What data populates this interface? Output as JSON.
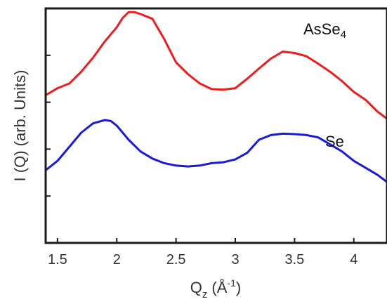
{
  "chart_data": {
    "type": "line",
    "xlabel_main": "Q",
    "xlabel_sub": "z",
    "xlabel_unit": "(Å",
    "xlabel_unit_sup": "-1",
    "xlabel_close": ")",
    "ylabel": "I (Q) (arb. Units)",
    "xlim": [
      1.4,
      4.28
    ],
    "ylim": [
      0,
      5
    ],
    "x_ticks": [
      "1.5",
      "2",
      "2.5",
      "3",
      "3.5",
      "4"
    ],
    "x_tick_values": [
      1.5,
      2,
      2.5,
      3,
      3.5,
      4
    ],
    "y_tick_values": [
      1,
      2,
      3,
      4
    ],
    "series": [
      {
        "name": "AsSe",
        "name_sub": "4",
        "color": "#ee1c1c",
        "x": [
          1.4,
          1.5,
          1.6,
          1.7,
          1.8,
          1.9,
          2.0,
          2.05,
          2.1,
          2.15,
          2.2,
          2.3,
          2.4,
          2.5,
          2.6,
          2.7,
          2.8,
          2.9,
          3.0,
          3.1,
          3.2,
          3.3,
          3.4,
          3.5,
          3.6,
          3.7,
          3.8,
          3.9,
          4.0,
          4.1,
          4.2,
          4.28
        ],
        "y": [
          3.15,
          3.3,
          3.4,
          3.65,
          3.95,
          4.3,
          4.6,
          4.8,
          4.92,
          4.92,
          4.88,
          4.78,
          4.35,
          3.85,
          3.6,
          3.4,
          3.28,
          3.27,
          3.3,
          3.5,
          3.72,
          3.93,
          4.08,
          4.05,
          3.98,
          3.82,
          3.65,
          3.45,
          3.22,
          3.05,
          2.8,
          2.65
        ]
      },
      {
        "name": "Se",
        "color": "#1a1add",
        "x": [
          1.4,
          1.5,
          1.6,
          1.7,
          1.8,
          1.9,
          1.95,
          2.0,
          2.1,
          2.2,
          2.3,
          2.4,
          2.5,
          2.6,
          2.7,
          2.8,
          2.9,
          3.0,
          3.1,
          3.2,
          3.3,
          3.4,
          3.5,
          3.6,
          3.7,
          3.8,
          3.9,
          4.0,
          4.1,
          4.2,
          4.28
        ],
        "y": [
          1.55,
          1.75,
          2.05,
          2.35,
          2.55,
          2.62,
          2.6,
          2.5,
          2.2,
          1.95,
          1.8,
          1.7,
          1.65,
          1.63,
          1.65,
          1.7,
          1.72,
          1.78,
          1.92,
          2.2,
          2.3,
          2.33,
          2.32,
          2.3,
          2.25,
          2.1,
          1.95,
          1.75,
          1.6,
          1.45,
          1.3
        ]
      }
    ]
  }
}
